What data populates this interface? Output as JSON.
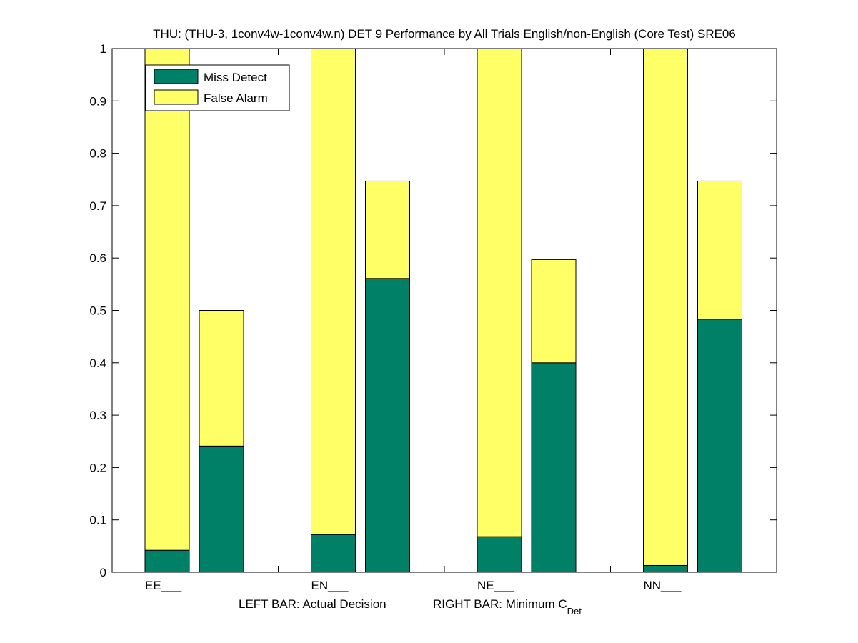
{
  "chart_data": {
    "type": "bar",
    "stacked": true,
    "title": "THU: (THU-3, 1conv4w-1conv4w.n) DET 9 Performance by All Trials English/non-English (Core Test) SRE06",
    "categories": [
      "EE___",
      "EN___",
      "NE___",
      "NN___"
    ],
    "xlabel": {
      "left": "LEFT BAR: Actual Decision",
      "right_main": "RIGHT BAR: Minimum C",
      "right_sub": "Det"
    },
    "ylim": [
      0,
      1
    ],
    "yticks": [
      "0",
      "0.1",
      "0.2",
      "0.3",
      "0.4",
      "0.5",
      "0.6",
      "0.7",
      "0.8",
      "0.9",
      "1"
    ],
    "legend_position": "top-left",
    "series": [
      {
        "name": "Miss Detect",
        "color": "#008066",
        "actual_decision": [
          0.042,
          0.072,
          0.068,
          0.013
        ],
        "minimum_cdet": [
          0.241,
          0.561,
          0.4,
          0.483
        ]
      },
      {
        "name": "False Alarm",
        "color": "#ffff66",
        "actual_decision": [
          0.958,
          0.928,
          0.932,
          0.987
        ],
        "minimum_cdet": [
          0.259,
          0.186,
          0.197,
          0.264
        ]
      }
    ]
  }
}
